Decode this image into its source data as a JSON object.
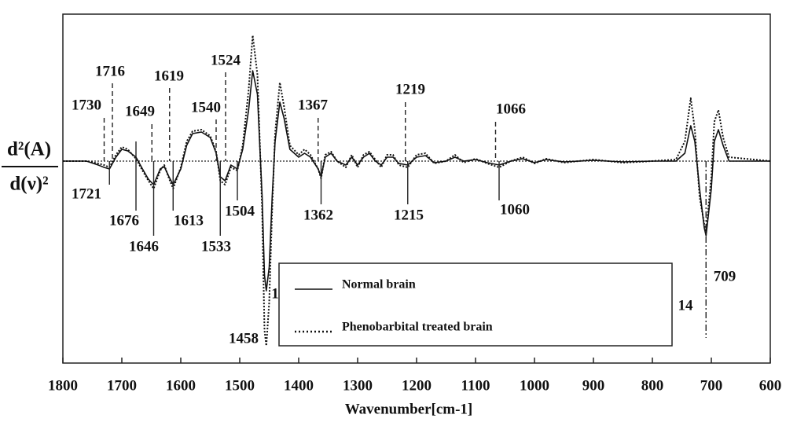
{
  "chart_data": {
    "type": "line",
    "xlabel": "Wavenumber[cm-1]",
    "ylabel_numerator": "d²(A)",
    "ylabel_denominator": "d(ν)²",
    "xlim": [
      1800,
      600
    ],
    "xticks": [
      1800,
      1700,
      1600,
      1500,
      1400,
      1300,
      1200,
      1100,
      1000,
      900,
      800,
      700,
      600
    ],
    "ylim": [
      -257,
      187
    ],
    "zero_line": true,
    "legend": "lower center",
    "x": [
      1800,
      1760,
      1740,
      1730,
      1721,
      1710,
      1700,
      1690,
      1676,
      1665,
      1655,
      1646,
      1635,
      1628,
      1620,
      1613,
      1600,
      1590,
      1580,
      1565,
      1550,
      1540,
      1533,
      1525,
      1515,
      1504,
      1495,
      1485,
      1478,
      1470,
      1462,
      1458,
      1455,
      1450,
      1445,
      1440,
      1432,
      1425,
      1415,
      1400,
      1390,
      1380,
      1367,
      1362,
      1355,
      1345,
      1335,
      1320,
      1310,
      1300,
      1290,
      1280,
      1270,
      1260,
      1250,
      1240,
      1230,
      1215,
      1200,
      1185,
      1170,
      1150,
      1135,
      1120,
      1100,
      1080,
      1060,
      1040,
      1020,
      1000,
      980,
      950,
      900,
      850,
      800,
      760,
      745,
      735,
      728,
      720,
      712,
      709,
      700,
      695,
      688,
      680,
      670,
      600
    ],
    "series": [
      {
        "name": "Normal brain",
        "color": "#111111",
        "style": "solid",
        "values": [
          0,
          0,
          -5,
          -8,
          -10,
          5,
          15,
          13,
          5,
          -10,
          -23,
          -30,
          -10,
          -7,
          -20,
          -30,
          -10,
          20,
          35,
          37,
          30,
          10,
          -20,
          -25,
          -5,
          -10,
          15,
          65,
          115,
          85,
          -45,
          -145,
          -165,
          -135,
          -45,
          25,
          75,
          55,
          15,
          5,
          10,
          5,
          -10,
          -20,
          5,
          10,
          0,
          -5,
          5,
          -5,
          5,
          10,
          0,
          -5,
          5,
          5,
          -3,
          -5,
          5,
          7,
          -2,
          0,
          5,
          0,
          2,
          -2,
          -5,
          0,
          3,
          -2,
          2,
          -1,
          1,
          -1,
          0,
          0,
          10,
          45,
          25,
          -35,
          -85,
          -95,
          -35,
          25,
          40,
          20,
          0,
          0
        ]
      },
      {
        "name": "Phenobarbital treated brain",
        "color": "#111111",
        "style": "dotted",
        "values": [
          0,
          0,
          -3,
          -5,
          -8,
          8,
          18,
          15,
          3,
          -12,
          -25,
          -35,
          -12,
          -5,
          -22,
          -35,
          -8,
          25,
          38,
          40,
          32,
          12,
          -25,
          -30,
          -8,
          -12,
          20,
          90,
          160,
          110,
          -60,
          -215,
          -235,
          -180,
          -60,
          35,
          100,
          70,
          20,
          8,
          15,
          8,
          -10,
          -22,
          8,
          12,
          0,
          -8,
          8,
          -8,
          8,
          12,
          2,
          -8,
          8,
          8,
          -5,
          -8,
          8,
          10,
          -3,
          0,
          8,
          -2,
          3,
          -3,
          -8,
          0,
          5,
          -3,
          3,
          -2,
          2,
          -2,
          0,
          2,
          25,
          80,
          40,
          -45,
          -80,
          -90,
          -20,
          50,
          65,
          30,
          5,
          0
        ]
      }
    ],
    "annotations": [
      {
        "x": 1730,
        "line": "dashed"
      },
      {
        "x": 1716,
        "line": "dashed"
      },
      {
        "x": 1649,
        "line": "dashed"
      },
      {
        "x": 1619,
        "line": "dashed"
      },
      {
        "x": 1540,
        "line": "dashed"
      },
      {
        "x": 1524,
        "line": "dashed"
      },
      {
        "x": 1367,
        "line": "dashed"
      },
      {
        "x": 1219,
        "line": "dashed"
      },
      {
        "x": 1066,
        "line": "dashed"
      },
      {
        "x": 1721,
        "line": "solid"
      },
      {
        "x": 1676,
        "line": "solid"
      },
      {
        "x": 1646,
        "line": "solid"
      },
      {
        "x": 1613,
        "line": "solid"
      },
      {
        "x": 1533,
        "line": "solid"
      },
      {
        "x": 1504,
        "line": "solid"
      },
      {
        "x": 1362,
        "line": "solid"
      },
      {
        "x": 1215,
        "line": "solid"
      },
      {
        "x": 1060,
        "line": "solid"
      },
      {
        "x": 1458,
        "line": "none"
      },
      {
        "x": 709,
        "line": "dashdot"
      }
    ],
    "clipped_labels": [
      "1",
      "14"
    ]
  }
}
